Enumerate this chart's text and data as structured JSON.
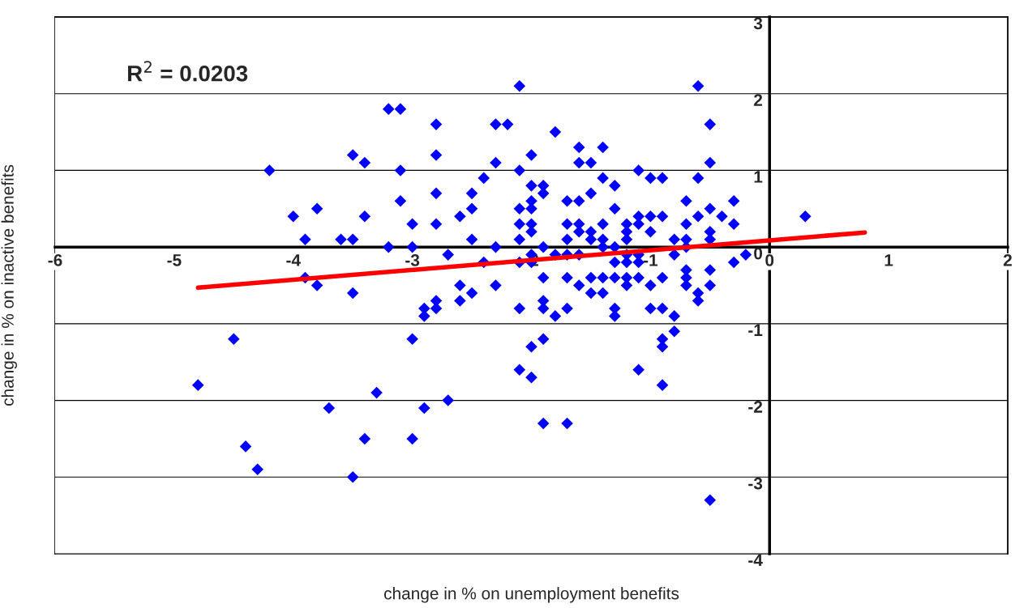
{
  "chart_data": {
    "type": "scatter",
    "xlabel": "change in % on unemployment benefits",
    "ylabel": "change in % on inactive benefits",
    "annotations": [
      "R$^{2}$ = 0.0203"
    ],
    "xlim": [
      -6,
      2
    ],
    "xticks": [
      -6,
      -5,
      -4,
      -3,
      -2,
      -1,
      0,
      1,
      2
    ],
    "ylim": [
      -4,
      3
    ],
    "yticks": [
      -4,
      -3,
      -2,
      -1,
      0,
      1,
      2,
      3
    ],
    "grid": "y",
    "series": [
      {
        "marker": "diamond",
        "color": "#0000ff",
        "x": [
          -4.8,
          -4.5,
          -4.4,
          -4.3,
          -4.2,
          -4.0,
          -3.9,
          -3.9,
          -3.8,
          -3.8,
          -3.7,
          -3.6,
          -3.5,
          -3.5,
          -3.5,
          -3.5,
          -3.4,
          -3.4,
          -3.4,
          -3.3,
          -3.2,
          -3.2,
          -3.1,
          -3.1,
          -3.1,
          -3.0,
          -3.0,
          -3.0,
          -3.0,
          -2.9,
          -2.9,
          -2.9,
          -2.8,
          -2.8,
          -2.8,
          -2.8,
          -2.8,
          -2.8,
          -2.7,
          -2.7,
          -2.6,
          -2.6,
          -2.6,
          -2.5,
          -2.5,
          -2.5,
          -2.5,
          -2.4,
          -2.4,
          -2.3,
          -2.3,
          -2.3,
          -2.3,
          -2.2,
          -2.1,
          -2.1,
          -2.1,
          -2.1,
          -2.1,
          -2.1,
          -2.1,
          -2.1,
          -2.0,
          -2.0,
          -2.0,
          -2.0,
          -2.0,
          -2.0,
          -2.0,
          -2.0,
          -2.0,
          -2.0,
          -1.9,
          -1.9,
          -1.9,
          -1.9,
          -1.9,
          -1.9,
          -1.9,
          -1.9,
          -1.8,
          -1.8,
          -1.8,
          -1.7,
          -1.7,
          -1.7,
          -1.7,
          -1.7,
          -1.7,
          -1.7,
          -1.6,
          -1.6,
          -1.6,
          -1.6,
          -1.6,
          -1.6,
          -1.6,
          -1.5,
          -1.5,
          -1.5,
          -1.5,
          -1.5,
          -1.5,
          -1.4,
          -1.4,
          -1.4,
          -1.4,
          -1.4,
          -1.4,
          -1.4,
          -1.3,
          -1.3,
          -1.3,
          -1.3,
          -1.3,
          -1.3,
          -1.3,
          -1.2,
          -1.2,
          -1.2,
          -1.2,
          -1.2,
          -1.2,
          -1.2,
          -1.1,
          -1.1,
          -1.1,
          -1.1,
          -1.1,
          -1.1,
          -1.1,
          -1.0,
          -1.0,
          -1.0,
          -1.0,
          -1.0,
          -0.9,
          -0.9,
          -0.9,
          -0.9,
          -0.9,
          -0.9,
          -0.9,
          -0.8,
          -0.8,
          -0.8,
          -0.8,
          -0.7,
          -0.7,
          -0.7,
          -0.7,
          -0.7,
          -0.7,
          -0.7,
          -0.6,
          -0.6,
          -0.6,
          -0.6,
          -0.6,
          -0.5,
          -0.5,
          -0.5,
          -0.5,
          -0.5,
          -0.5,
          -0.5,
          -0.5,
          -0.4,
          -0.3,
          -0.3,
          -0.3,
          -0.2,
          0.3
        ],
        "values": [
          -1.8,
          -1.2,
          -2.6,
          -2.9,
          1.0,
          0.4,
          0.1,
          -0.4,
          0.5,
          -0.5,
          -2.1,
          0.1,
          0.1,
          1.2,
          -0.6,
          -3.0,
          1.1,
          0.4,
          -2.5,
          -1.9,
          0.0,
          1.8,
          1.8,
          1.0,
          0.6,
          0.3,
          0.0,
          -1.2,
          -2.5,
          -0.8,
          -0.9,
          -2.1,
          1.6,
          1.2,
          0.7,
          0.3,
          -0.7,
          -0.8,
          -0.1,
          -2.0,
          0.4,
          -0.5,
          -0.7,
          0.7,
          0.5,
          0.1,
          -0.6,
          0.9,
          -0.2,
          1.6,
          1.1,
          0.0,
          -0.5,
          1.6,
          2.1,
          1.0,
          0.5,
          0.3,
          0.1,
          -0.2,
          -0.8,
          -1.6,
          1.2,
          0.8,
          0.6,
          0.5,
          0.3,
          0.2,
          -0.1,
          -0.2,
          -1.3,
          -1.7,
          0.8,
          0.7,
          0.0,
          -0.4,
          -0.7,
          -0.8,
          -1.2,
          -2.3,
          1.5,
          -0.1,
          -0.9,
          0.6,
          0.3,
          0.1,
          -0.1,
          -0.4,
          -0.8,
          -2.3,
          1.3,
          1.1,
          0.6,
          0.3,
          0.2,
          -0.1,
          -0.5,
          1.1,
          0.7,
          0.2,
          0.1,
          -0.4,
          -0.6,
          1.3,
          0.9,
          0.3,
          0.1,
          0.0,
          -0.4,
          -0.6,
          0.8,
          0.5,
          0.0,
          -0.2,
          -0.4,
          -0.8,
          -0.9,
          0.3,
          0.2,
          0.1,
          -0.1,
          -0.2,
          -0.4,
          -0.5,
          1.0,
          0.4,
          0.3,
          -0.1,
          -0.2,
          -0.4,
          -1.6,
          0.9,
          0.4,
          0.2,
          -0.5,
          -0.8,
          0.9,
          0.4,
          -0.4,
          -0.8,
          -1.2,
          -1.3,
          -1.8,
          0.1,
          -0.1,
          -0.9,
          -1.1,
          0.6,
          0.3,
          0.1,
          0.0,
          -0.3,
          -0.4,
          -0.5,
          2.1,
          0.9,
          0.4,
          -0.6,
          -0.7,
          1.6,
          1.1,
          0.5,
          0.2,
          0.1,
          -0.3,
          -0.5,
          -3.3,
          0.4,
          0.6,
          0.3,
          -0.2,
          -0.1,
          0.4
        ]
      },
      {
        "type": "line",
        "color": "#ff0000",
        "x": [
          -4.8,
          0.8
        ],
        "values": [
          -0.53,
          0.19
        ]
      }
    ]
  }
}
